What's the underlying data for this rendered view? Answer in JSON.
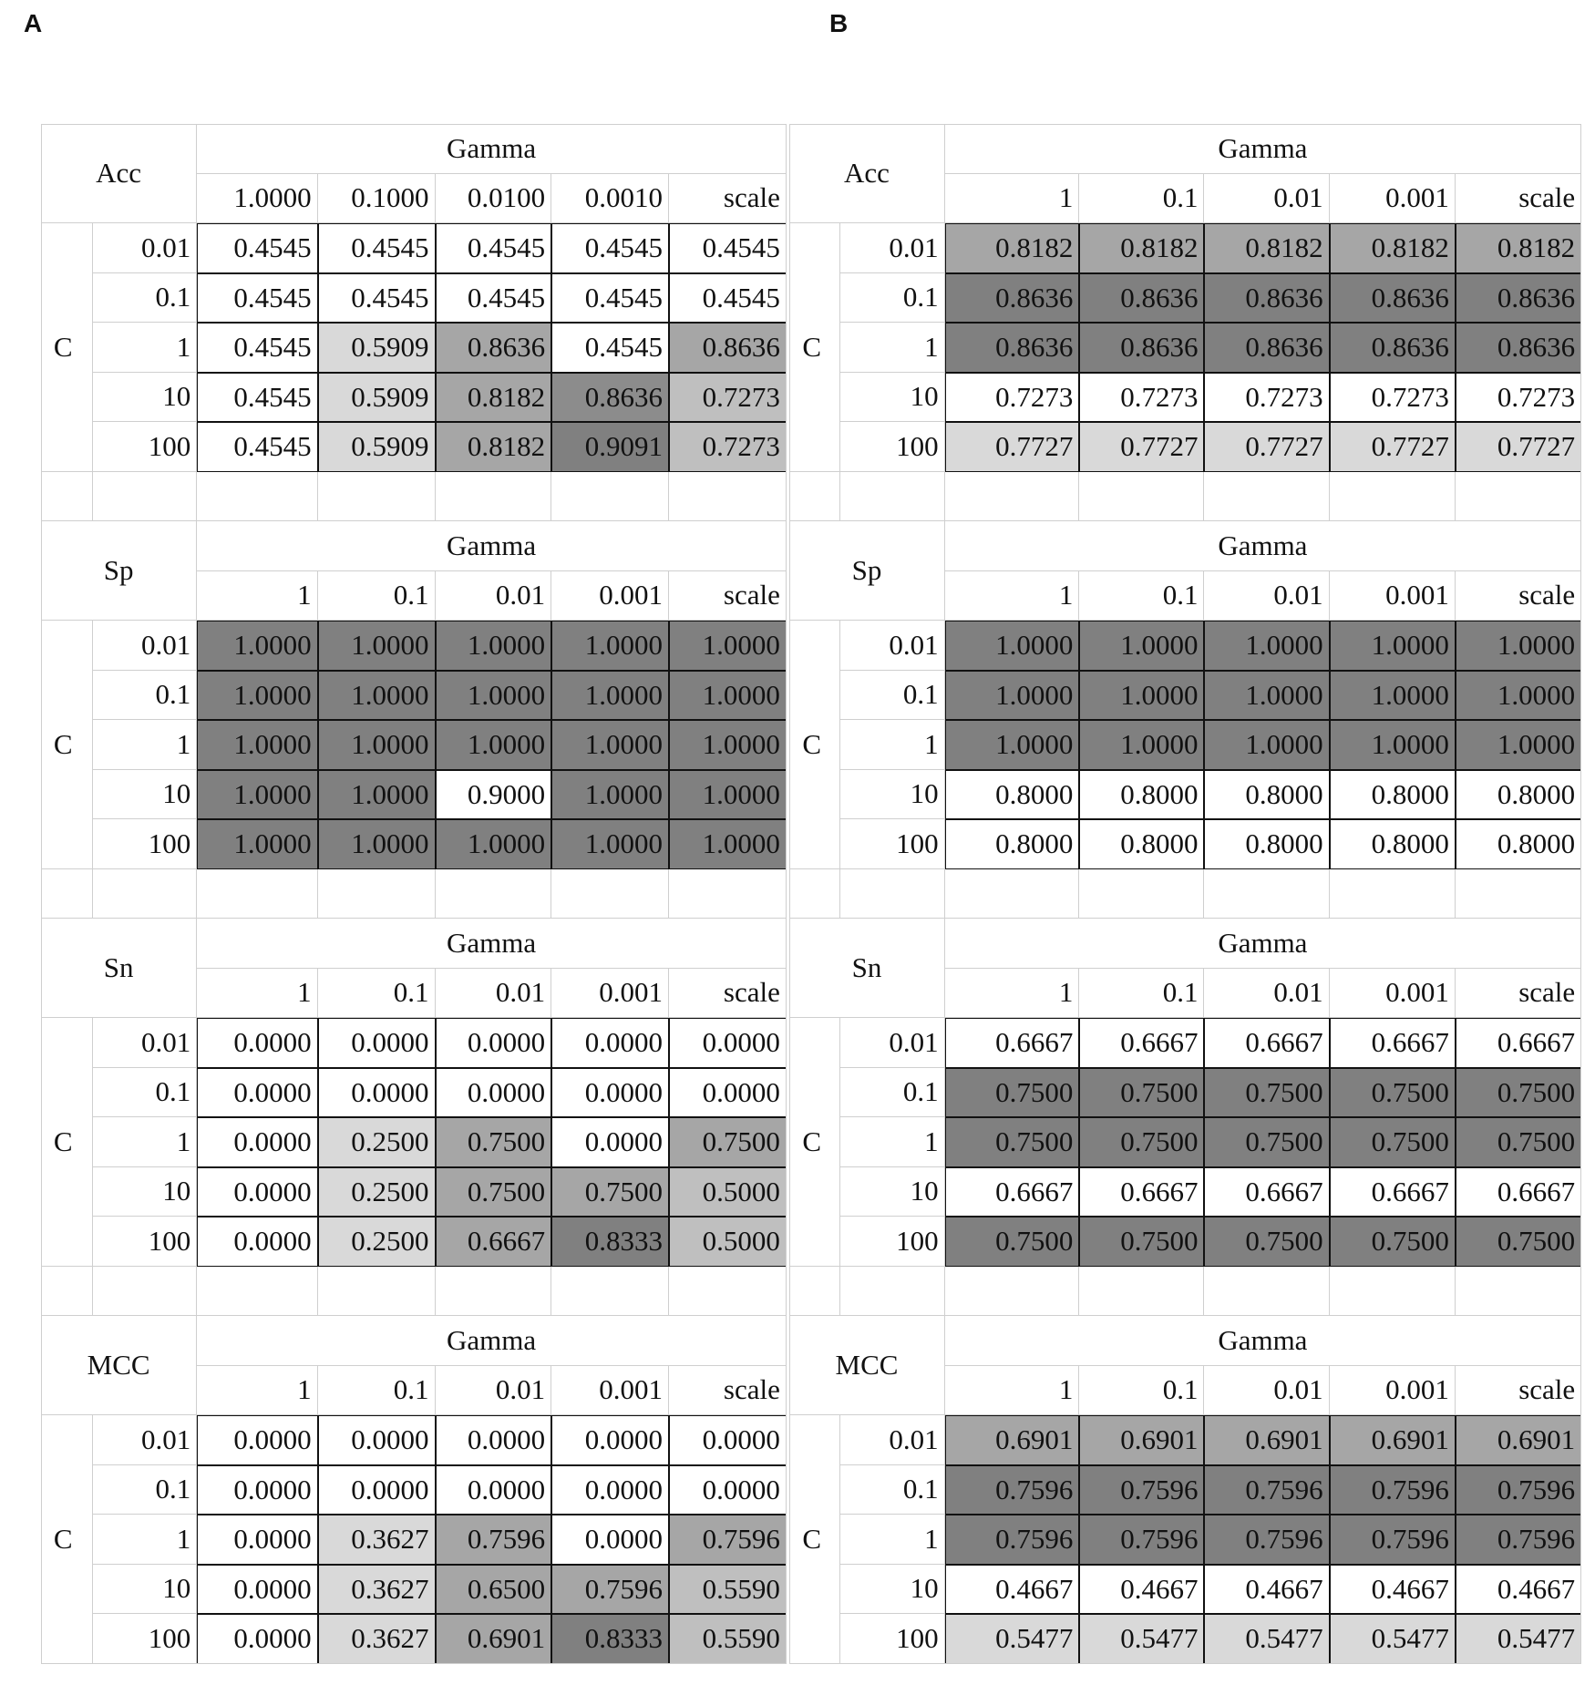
{
  "panels": [
    {
      "label": "A",
      "tables": [
        {
          "metric": "Acc",
          "gamma_label": "Gamma",
          "c_label": "C",
          "columns": [
            "1.0000",
            "0.1000",
            "0.0100",
            "0.0010",
            "scale"
          ],
          "rows": [
            {
              "c": "0.01",
              "cells": [
                "0.4545",
                "0.4545",
                "0.4545",
                "0.4545",
                "0.4545"
              ],
              "colors": [
                "#ffffff",
                "#ffffff",
                "#ffffff",
                "#ffffff",
                "#ffffff"
              ]
            },
            {
              "c": "0.1",
              "cells": [
                "0.4545",
                "0.4545",
                "0.4545",
                "0.4545",
                "0.4545"
              ],
              "colors": [
                "#ffffff",
                "#ffffff",
                "#ffffff",
                "#ffffff",
                "#ffffff"
              ]
            },
            {
              "c": "1",
              "cells": [
                "0.4545",
                "0.5909",
                "0.8636",
                "0.4545",
                "0.8636"
              ],
              "colors": [
                "#ffffff",
                "#d9d9d9",
                "#a6a6a6",
                "#ffffff",
                "#a6a6a6"
              ]
            },
            {
              "c": "10",
              "cells": [
                "0.4545",
                "0.5909",
                "0.8182",
                "0.8636",
                "0.7273"
              ],
              "colors": [
                "#ffffff",
                "#d9d9d9",
                "#a6a6a6",
                "#8c8c8c",
                "#bfbfbf"
              ]
            },
            {
              "c": "100",
              "cells": [
                "0.4545",
                "0.5909",
                "0.8182",
                "0.9091",
                "0.7273"
              ],
              "colors": [
                "#ffffff",
                "#d9d9d9",
                "#a6a6a6",
                "#808080",
                "#bfbfbf"
              ]
            }
          ]
        },
        {
          "metric": "Sp",
          "gamma_label": "Gamma",
          "c_label": "C",
          "columns": [
            "1",
            "0.1",
            "0.01",
            "0.001",
            "scale"
          ],
          "rows": [
            {
              "c": "0.01",
              "cells": [
                "1.0000",
                "1.0000",
                "1.0000",
                "1.0000",
                "1.0000"
              ],
              "colors": [
                "#808080",
                "#808080",
                "#808080",
                "#808080",
                "#808080"
              ]
            },
            {
              "c": "0.1",
              "cells": [
                "1.0000",
                "1.0000",
                "1.0000",
                "1.0000",
                "1.0000"
              ],
              "colors": [
                "#808080",
                "#808080",
                "#808080",
                "#808080",
                "#808080"
              ]
            },
            {
              "c": "1",
              "cells": [
                "1.0000",
                "1.0000",
                "1.0000",
                "1.0000",
                "1.0000"
              ],
              "colors": [
                "#808080",
                "#808080",
                "#808080",
                "#808080",
                "#808080"
              ]
            },
            {
              "c": "10",
              "cells": [
                "1.0000",
                "1.0000",
                "0.9000",
                "1.0000",
                "1.0000"
              ],
              "colors": [
                "#808080",
                "#808080",
                "#ffffff",
                "#808080",
                "#808080"
              ]
            },
            {
              "c": "100",
              "cells": [
                "1.0000",
                "1.0000",
                "1.0000",
                "1.0000",
                "1.0000"
              ],
              "colors": [
                "#808080",
                "#808080",
                "#808080",
                "#808080",
                "#808080"
              ]
            }
          ]
        },
        {
          "metric": "Sn",
          "gamma_label": "Gamma",
          "c_label": "C",
          "columns": [
            "1",
            "0.1",
            "0.01",
            "0.001",
            "scale"
          ],
          "rows": [
            {
              "c": "0.01",
              "cells": [
                "0.0000",
                "0.0000",
                "0.0000",
                "0.0000",
                "0.0000"
              ],
              "colors": [
                "#ffffff",
                "#ffffff",
                "#ffffff",
                "#ffffff",
                "#ffffff"
              ]
            },
            {
              "c": "0.1",
              "cells": [
                "0.0000",
                "0.0000",
                "0.0000",
                "0.0000",
                "0.0000"
              ],
              "colors": [
                "#ffffff",
                "#ffffff",
                "#ffffff",
                "#ffffff",
                "#ffffff"
              ]
            },
            {
              "c": "1",
              "cells": [
                "0.0000",
                "0.2500",
                "0.7500",
                "0.0000",
                "0.7500"
              ],
              "colors": [
                "#ffffff",
                "#d9d9d9",
                "#a6a6a6",
                "#ffffff",
                "#a6a6a6"
              ]
            },
            {
              "c": "10",
              "cells": [
                "0.0000",
                "0.2500",
                "0.7500",
                "0.7500",
                "0.5000"
              ],
              "colors": [
                "#ffffff",
                "#d9d9d9",
                "#a6a6a6",
                "#a6a6a6",
                "#bfbfbf"
              ]
            },
            {
              "c": "100",
              "cells": [
                "0.0000",
                "0.2500",
                "0.6667",
                "0.8333",
                "0.5000"
              ],
              "colors": [
                "#ffffff",
                "#d9d9d9",
                "#a6a6a6",
                "#808080",
                "#bfbfbf"
              ]
            }
          ]
        },
        {
          "metric": "MCC",
          "gamma_label": "Gamma",
          "c_label": "C",
          "columns": [
            "1",
            "0.1",
            "0.01",
            "0.001",
            "scale"
          ],
          "rows": [
            {
              "c": "0.01",
              "cells": [
                "0.0000",
                "0.0000",
                "0.0000",
                "0.0000",
                "0.0000"
              ],
              "colors": [
                "#ffffff",
                "#ffffff",
                "#ffffff",
                "#ffffff",
                "#ffffff"
              ]
            },
            {
              "c": "0.1",
              "cells": [
                "0.0000",
                "0.0000",
                "0.0000",
                "0.0000",
                "0.0000"
              ],
              "colors": [
                "#ffffff",
                "#ffffff",
                "#ffffff",
                "#ffffff",
                "#ffffff"
              ]
            },
            {
              "c": "1",
              "cells": [
                "0.0000",
                "0.3627",
                "0.7596",
                "0.0000",
                "0.7596"
              ],
              "colors": [
                "#ffffff",
                "#d9d9d9",
                "#a6a6a6",
                "#ffffff",
                "#a6a6a6"
              ]
            },
            {
              "c": "10",
              "cells": [
                "0.0000",
                "0.3627",
                "0.6500",
                "0.7596",
                "0.5590"
              ],
              "colors": [
                "#ffffff",
                "#d9d9d9",
                "#a6a6a6",
                "#a6a6a6",
                "#bfbfbf"
              ]
            },
            {
              "c": "100",
              "cells": [
                "0.0000",
                "0.3627",
                "0.6901",
                "0.8333",
                "0.5590"
              ],
              "colors": [
                "#ffffff",
                "#d9d9d9",
                "#a6a6a6",
                "#808080",
                "#bfbfbf"
              ]
            }
          ]
        }
      ]
    },
    {
      "label": "B",
      "tables": [
        {
          "metric": "Acc",
          "gamma_label": "Gamma",
          "c_label": "C",
          "columns": [
            "1",
            "0.1",
            "0.01",
            "0.001",
            "scale"
          ],
          "rows": [
            {
              "c": "0.01",
              "cells": [
                "0.8182",
                "0.8182",
                "0.8182",
                "0.8182",
                "0.8182"
              ],
              "colors": [
                "#a6a6a6",
                "#a6a6a6",
                "#a6a6a6",
                "#a6a6a6",
                "#a6a6a6"
              ]
            },
            {
              "c": "0.1",
              "cells": [
                "0.8636",
                "0.8636",
                "0.8636",
                "0.8636",
                "0.8636"
              ],
              "colors": [
                "#808080",
                "#808080",
                "#808080",
                "#808080",
                "#808080"
              ]
            },
            {
              "c": "1",
              "cells": [
                "0.8636",
                "0.8636",
                "0.8636",
                "0.8636",
                "0.8636"
              ],
              "colors": [
                "#808080",
                "#808080",
                "#808080",
                "#808080",
                "#808080"
              ]
            },
            {
              "c": "10",
              "cells": [
                "0.7273",
                "0.7273",
                "0.7273",
                "0.7273",
                "0.7273"
              ],
              "colors": [
                "#ffffff",
                "#ffffff",
                "#ffffff",
                "#ffffff",
                "#ffffff"
              ]
            },
            {
              "c": "100",
              "cells": [
                "0.7727",
                "0.7727",
                "0.7727",
                "0.7727",
                "0.7727"
              ],
              "colors": [
                "#d9d9d9",
                "#d9d9d9",
                "#d9d9d9",
                "#d9d9d9",
                "#d9d9d9"
              ]
            }
          ]
        },
        {
          "metric": "Sp",
          "gamma_label": "Gamma",
          "c_label": "C",
          "columns": [
            "1",
            "0.1",
            "0.01",
            "0.001",
            "scale"
          ],
          "rows": [
            {
              "c": "0.01",
              "cells": [
                "1.0000",
                "1.0000",
                "1.0000",
                "1.0000",
                "1.0000"
              ],
              "colors": [
                "#808080",
                "#808080",
                "#808080",
                "#808080",
                "#808080"
              ]
            },
            {
              "c": "0.1",
              "cells": [
                "1.0000",
                "1.0000",
                "1.0000",
                "1.0000",
                "1.0000"
              ],
              "colors": [
                "#808080",
                "#808080",
                "#808080",
                "#808080",
                "#808080"
              ]
            },
            {
              "c": "1",
              "cells": [
                "1.0000",
                "1.0000",
                "1.0000",
                "1.0000",
                "1.0000"
              ],
              "colors": [
                "#808080",
                "#808080",
                "#808080",
                "#808080",
                "#808080"
              ]
            },
            {
              "c": "10",
              "cells": [
                "0.8000",
                "0.8000",
                "0.8000",
                "0.8000",
                "0.8000"
              ],
              "colors": [
                "#ffffff",
                "#ffffff",
                "#ffffff",
                "#ffffff",
                "#ffffff"
              ]
            },
            {
              "c": "100",
              "cells": [
                "0.8000",
                "0.8000",
                "0.8000",
                "0.8000",
                "0.8000"
              ],
              "colors": [
                "#ffffff",
                "#ffffff",
                "#ffffff",
                "#ffffff",
                "#ffffff"
              ]
            }
          ]
        },
        {
          "metric": "Sn",
          "gamma_label": "Gamma",
          "c_label": "C",
          "columns": [
            "1",
            "0.1",
            "0.01",
            "0.001",
            "scale"
          ],
          "rows": [
            {
              "c": "0.01",
              "cells": [
                "0.6667",
                "0.6667",
                "0.6667",
                "0.6667",
                "0.6667"
              ],
              "colors": [
                "#ffffff",
                "#ffffff",
                "#ffffff",
                "#ffffff",
                "#ffffff"
              ]
            },
            {
              "c": "0.1",
              "cells": [
                "0.7500",
                "0.7500",
                "0.7500",
                "0.7500",
                "0.7500"
              ],
              "colors": [
                "#808080",
                "#808080",
                "#808080",
                "#808080",
                "#808080"
              ]
            },
            {
              "c": "1",
              "cells": [
                "0.7500",
                "0.7500",
                "0.7500",
                "0.7500",
                "0.7500"
              ],
              "colors": [
                "#808080",
                "#808080",
                "#808080",
                "#808080",
                "#808080"
              ]
            },
            {
              "c": "10",
              "cells": [
                "0.6667",
                "0.6667",
                "0.6667",
                "0.6667",
                "0.6667"
              ],
              "colors": [
                "#ffffff",
                "#ffffff",
                "#ffffff",
                "#ffffff",
                "#ffffff"
              ]
            },
            {
              "c": "100",
              "cells": [
                "0.7500",
                "0.7500",
                "0.7500",
                "0.7500",
                "0.7500"
              ],
              "colors": [
                "#808080",
                "#808080",
                "#808080",
                "#808080",
                "#808080"
              ]
            }
          ]
        },
        {
          "metric": "MCC",
          "gamma_label": "Gamma",
          "c_label": "C",
          "columns": [
            "1",
            "0.1",
            "0.01",
            "0.001",
            "scale"
          ],
          "rows": [
            {
              "c": "0.01",
              "cells": [
                "0.6901",
                "0.6901",
                "0.6901",
                "0.6901",
                "0.6901"
              ],
              "colors": [
                "#a6a6a6",
                "#a6a6a6",
                "#a6a6a6",
                "#a6a6a6",
                "#a6a6a6"
              ]
            },
            {
              "c": "0.1",
              "cells": [
                "0.7596",
                "0.7596",
                "0.7596",
                "0.7596",
                "0.7596"
              ],
              "colors": [
                "#808080",
                "#808080",
                "#808080",
                "#808080",
                "#808080"
              ]
            },
            {
              "c": "1",
              "cells": [
                "0.7596",
                "0.7596",
                "0.7596",
                "0.7596",
                "0.7596"
              ],
              "colors": [
                "#808080",
                "#808080",
                "#808080",
                "#808080",
                "#808080"
              ]
            },
            {
              "c": "10",
              "cells": [
                "0.4667",
                "0.4667",
                "0.4667",
                "0.4667",
                "0.4667"
              ],
              "colors": [
                "#ffffff",
                "#ffffff",
                "#ffffff",
                "#ffffff",
                "#ffffff"
              ]
            },
            {
              "c": "100",
              "cells": [
                "0.5477",
                "0.5477",
                "0.5477",
                "0.5477",
                "0.5477"
              ],
              "colors": [
                "#d9d9d9",
                "#d9d9d9",
                "#d9d9d9",
                "#d9d9d9",
                "#d9d9d9"
              ]
            }
          ]
        }
      ]
    }
  ]
}
